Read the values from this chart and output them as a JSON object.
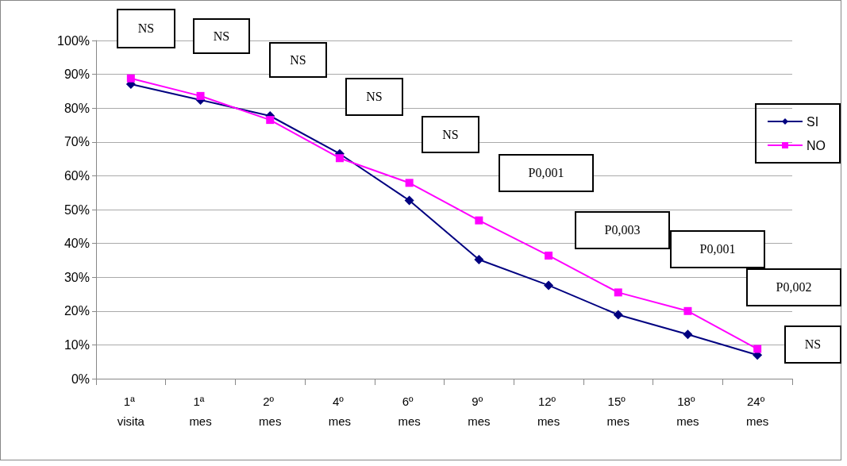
{
  "chart_data": {
    "type": "line",
    "categories": [
      "1ª visita",
      "1ª mes",
      "2º mes",
      "4º mes",
      "6º mes",
      "9º mes",
      "12º mes",
      "15º mes",
      "18º mes",
      "24º mes"
    ],
    "series": [
      {
        "name": "SI",
        "color": "#000080",
        "marker": "diamond",
        "values": [
          87.1,
          82.4,
          77.7,
          66.5,
          52.7,
          35.2,
          27.6,
          18.9,
          13.1,
          7.0
        ]
      },
      {
        "name": "NO",
        "color": "#ff00ff",
        "marker": "square",
        "values": [
          88.8,
          83.6,
          76.5,
          65.2,
          57.9,
          46.8,
          36.4,
          25.5,
          20.0,
          8.8
        ]
      }
    ],
    "ylim": [
      0,
      100
    ],
    "yticks": [
      {
        "value": 0,
        "label": "0%"
      },
      {
        "value": 10,
        "label": "10%"
      },
      {
        "value": 20,
        "label": "20%"
      },
      {
        "value": 30,
        "label": "30%"
      },
      {
        "value": 40,
        "label": "40%"
      },
      {
        "value": 50,
        "label": "50%"
      },
      {
        "value": 60,
        "label": "60%"
      },
      {
        "value": 70,
        "label": "70%"
      },
      {
        "value": 80,
        "label": "80%"
      },
      {
        "value": 90,
        "label": "90%"
      },
      {
        "value": 100,
        "label": "100%"
      }
    ],
    "grid": "y",
    "legend": "top right",
    "line_style": "solid",
    "annotations": [
      "NS",
      "NS",
      "NS",
      "NS",
      "NS",
      "P0,001",
      "P0,003",
      "P0,001",
      "P0,002",
      "NS"
    ]
  }
}
